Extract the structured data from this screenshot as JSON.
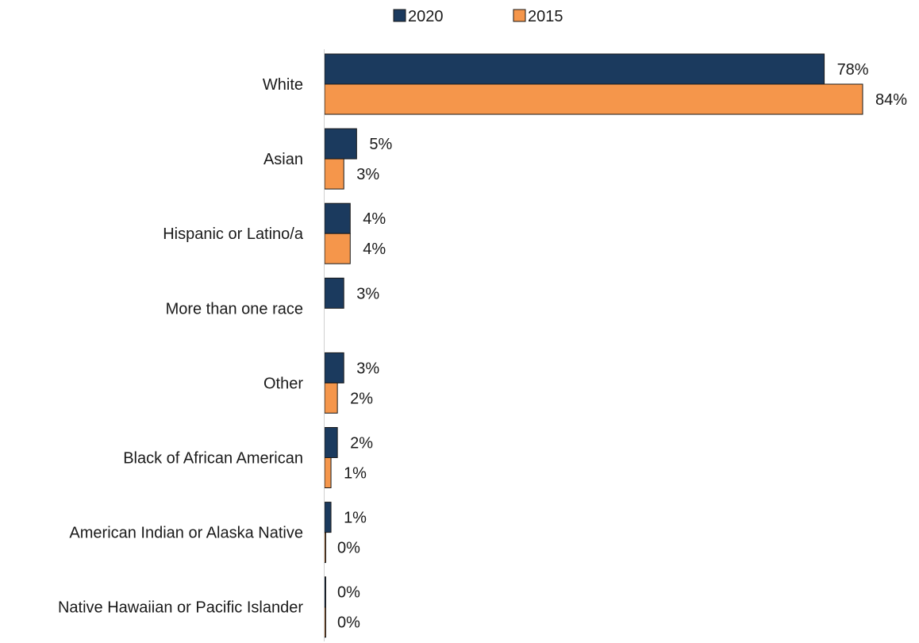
{
  "chart_data": {
    "type": "bar",
    "orientation": "horizontal",
    "categories": [
      "White",
      "Asian",
      "Hispanic or Latino/a",
      "More than one race",
      "Other",
      "Black of African American",
      "American Indian or Alaska Native",
      "Native Hawaiian or Pacific Islander"
    ],
    "series": [
      {
        "name": "2020",
        "color": "#1b3a5e",
        "values": [
          78,
          5,
          4,
          3,
          3,
          2,
          1,
          0
        ],
        "labels": [
          "78%",
          "5%",
          "4%",
          "3%",
          "3%",
          "2%",
          "1%",
          "0%"
        ]
      },
      {
        "name": "2015",
        "color": "#f5964b",
        "values": [
          84,
          3,
          4,
          null,
          2,
          1,
          0,
          0
        ],
        "labels": [
          "84%",
          "3%",
          "4%",
          "",
          "2%",
          "1%",
          "0%",
          "0%"
        ]
      }
    ],
    "value_unit": "%",
    "xlim": [
      0,
      84
    ],
    "legend_position": "top-center",
    "grid": false,
    "title": "",
    "xlabel": "",
    "ylabel": ""
  }
}
